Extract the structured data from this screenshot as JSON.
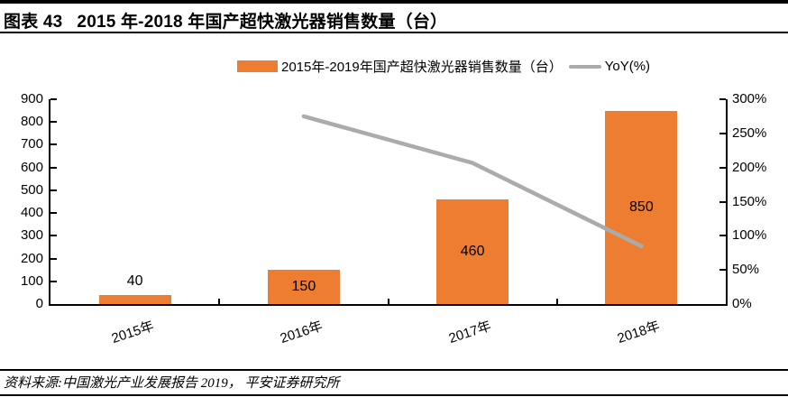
{
  "header": {
    "figure_label": "图表 43",
    "title": "2015 年-2018 年国产超快激光器销售数量（台）"
  },
  "legend": {
    "bars_label": "2015年-2019年国产超快激光器销售数量（台）",
    "line_label": "YoY(%)"
  },
  "chart_data": {
    "type": "bar",
    "title": "2015 年-2018 年国产超快激光器销售数量（台）",
    "categories": [
      "2015年",
      "2016年",
      "2017年",
      "2018年"
    ],
    "series": [
      {
        "name": "2015年-2019年国产超快激光器销售数量（台）",
        "type": "bar",
        "axis": "left",
        "values": [
          40,
          150,
          460,
          850
        ]
      },
      {
        "name": "YoY(%)",
        "type": "line",
        "axis": "right",
        "values": [
          null,
          275,
          206.7,
          84.8
        ]
      }
    ],
    "bar_data_labels": [
      "40",
      "150",
      "460",
      "850"
    ],
    "left_axis": {
      "min": 0,
      "max": 900,
      "step": 100,
      "tick_labels": [
        "0",
        "100",
        "200",
        "300",
        "400",
        "500",
        "600",
        "700",
        "800",
        "900"
      ]
    },
    "right_axis": {
      "min": 0,
      "max": 300,
      "step": 50,
      "tick_labels": [
        "0%",
        "50%",
        "100%",
        "150%",
        "200%",
        "250%",
        "300%"
      ]
    },
    "grid": false,
    "legend_position": "top"
  },
  "footer": {
    "source": "资料来源:中国激光产业发展报告 2019， 平安证券研究所"
  },
  "colors": {
    "bar": "#ED7D31",
    "line": "#ABABAB",
    "axis": "#000000",
    "text": "#000000"
  }
}
